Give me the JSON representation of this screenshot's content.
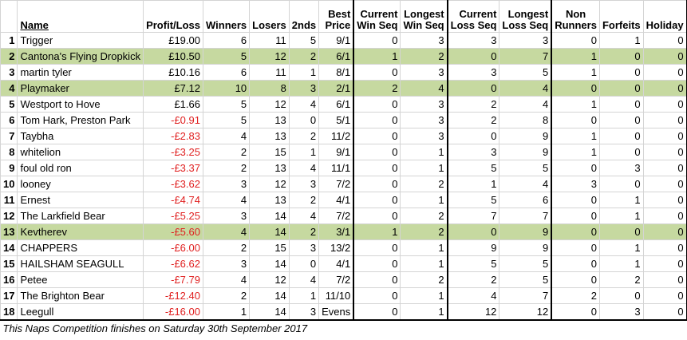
{
  "headers": {
    "pos": "",
    "name": "Name",
    "profit_loss": "Profit/Loss",
    "winners": "Winners",
    "losers": "Losers",
    "seconds": "2nds",
    "best_price_1": "Best",
    "best_price_2": "Price",
    "cur_win_1": "Current",
    "cur_win_2": "Win Seq",
    "long_win_1": "Longest",
    "long_win_2": "Win Seq",
    "cur_loss_1": "Current",
    "cur_loss_2": "Loss Seq",
    "long_loss_1": "Longest",
    "long_loss_2": "Loss Seq",
    "non_runners_1": "Non",
    "non_runners_2": "Runners",
    "forfeits": "Forfeits",
    "holiday": "Holiday"
  },
  "rows": [
    {
      "pos": "1",
      "name": "Trigger",
      "pl": "£19.00",
      "neg": false,
      "w": "6",
      "l": "11",
      "s": "5",
      "bp": "9/1",
      "cw": "0",
      "lw": "3",
      "cl": "3",
      "ll": "3",
      "nr": "0",
      "f": "1",
      "h": "0",
      "hl": false
    },
    {
      "pos": "2",
      "name": "Cantona's Flying Dropkick",
      "pl": "£10.50",
      "neg": false,
      "w": "5",
      "l": "12",
      "s": "2",
      "bp": "6/1",
      "cw": "1",
      "lw": "2",
      "cl": "0",
      "ll": "7",
      "nr": "1",
      "f": "0",
      "h": "0",
      "hl": true
    },
    {
      "pos": "3",
      "name": "martin tyler",
      "pl": "£10.16",
      "neg": false,
      "w": "6",
      "l": "11",
      "s": "1",
      "bp": "8/1",
      "cw": "0",
      "lw": "3",
      "cl": "3",
      "ll": "5",
      "nr": "1",
      "f": "0",
      "h": "0",
      "hl": false
    },
    {
      "pos": "4",
      "name": "Playmaker",
      "pl": "£7.12",
      "neg": false,
      "w": "10",
      "l": "8",
      "s": "3",
      "bp": "2/1",
      "cw": "2",
      "lw": "4",
      "cl": "0",
      "ll": "4",
      "nr": "0",
      "f": "0",
      "h": "0",
      "hl": true
    },
    {
      "pos": "5",
      "name": "Westport to Hove",
      "pl": "£1.66",
      "neg": false,
      "w": "5",
      "l": "12",
      "s": "4",
      "bp": "6/1",
      "cw": "0",
      "lw": "3",
      "cl": "2",
      "ll": "4",
      "nr": "1",
      "f": "0",
      "h": "0",
      "hl": false
    },
    {
      "pos": "6",
      "name": "Tom Hark, Preston Park",
      "pl": "-£0.91",
      "neg": true,
      "w": "5",
      "l": "13",
      "s": "0",
      "bp": "5/1",
      "cw": "0",
      "lw": "3",
      "cl": "2",
      "ll": "8",
      "nr": "0",
      "f": "0",
      "h": "0",
      "hl": false
    },
    {
      "pos": "7",
      "name": "Taybha",
      "pl": "-£2.83",
      "neg": true,
      "w": "4",
      "l": "13",
      "s": "2",
      "bp": "11/2",
      "cw": "0",
      "lw": "3",
      "cl": "0",
      "ll": "9",
      "nr": "1",
      "f": "0",
      "h": "0",
      "hl": false
    },
    {
      "pos": "8",
      "name": "whitelion",
      "pl": "-£3.25",
      "neg": true,
      "w": "2",
      "l": "15",
      "s": "1",
      "bp": "9/1",
      "cw": "0",
      "lw": "1",
      "cl": "3",
      "ll": "9",
      "nr": "1",
      "f": "0",
      "h": "0",
      "hl": false
    },
    {
      "pos": "9",
      "name": "foul old ron",
      "pl": "-£3.37",
      "neg": true,
      "w": "2",
      "l": "13",
      "s": "4",
      "bp": "11/1",
      "cw": "0",
      "lw": "1",
      "cl": "5",
      "ll": "5",
      "nr": "0",
      "f": "3",
      "h": "0",
      "hl": false
    },
    {
      "pos": "10",
      "name": "looney",
      "pl": "-£3.62",
      "neg": true,
      "w": "3",
      "l": "12",
      "s": "3",
      "bp": "7/2",
      "cw": "0",
      "lw": "2",
      "cl": "1",
      "ll": "4",
      "nr": "3",
      "f": "0",
      "h": "0",
      "hl": false
    },
    {
      "pos": "11",
      "name": "Ernest",
      "pl": "-£4.74",
      "neg": true,
      "w": "4",
      "l": "13",
      "s": "2",
      "bp": "4/1",
      "cw": "0",
      "lw": "1",
      "cl": "5",
      "ll": "6",
      "nr": "0",
      "f": "1",
      "h": "0",
      "hl": false
    },
    {
      "pos": "12",
      "name": "The Larkfield Bear",
      "pl": "-£5.25",
      "neg": true,
      "w": "3",
      "l": "14",
      "s": "4",
      "bp": "7/2",
      "cw": "0",
      "lw": "2",
      "cl": "7",
      "ll": "7",
      "nr": "0",
      "f": "1",
      "h": "0",
      "hl": false
    },
    {
      "pos": "13",
      "name": "Kevtherev",
      "pl": "-£5.60",
      "neg": true,
      "w": "4",
      "l": "14",
      "s": "2",
      "bp": "3/1",
      "cw": "1",
      "lw": "2",
      "cl": "0",
      "ll": "9",
      "nr": "0",
      "f": "0",
      "h": "0",
      "hl": true
    },
    {
      "pos": "14",
      "name": "CHAPPERS",
      "pl": "-£6.00",
      "neg": true,
      "w": "2",
      "l": "15",
      "s": "3",
      "bp": "13/2",
      "cw": "0",
      "lw": "1",
      "cl": "9",
      "ll": "9",
      "nr": "0",
      "f": "1",
      "h": "0",
      "hl": false
    },
    {
      "pos": "15",
      "name": "HAILSHAM SEAGULL",
      "pl": "-£6.62",
      "neg": true,
      "w": "3",
      "l": "14",
      "s": "0",
      "bp": "4/1",
      "cw": "0",
      "lw": "1",
      "cl": "5",
      "ll": "5",
      "nr": "0",
      "f": "1",
      "h": "0",
      "hl": false
    },
    {
      "pos": "16",
      "name": "Petee",
      "pl": "-£7.79",
      "neg": true,
      "w": "4",
      "l": "12",
      "s": "4",
      "bp": "7/2",
      "cw": "0",
      "lw": "2",
      "cl": "2",
      "ll": "5",
      "nr": "0",
      "f": "2",
      "h": "0",
      "hl": false
    },
    {
      "pos": "17",
      "name": "The Brighton Bear",
      "pl": "-£12.40",
      "neg": true,
      "w": "2",
      "l": "14",
      "s": "1",
      "bp": "11/10",
      "cw": "0",
      "lw": "1",
      "cl": "4",
      "ll": "7",
      "nr": "2",
      "f": "0",
      "h": "0",
      "hl": false
    },
    {
      "pos": "18",
      "name": "Leegull",
      "pl": "-£16.00",
      "neg": true,
      "w": "1",
      "l": "14",
      "s": "3",
      "bp": "Evens",
      "cw": "0",
      "lw": "1",
      "cl": "12",
      "ll": "12",
      "nr": "0",
      "f": "3",
      "h": "0",
      "hl": false
    }
  ],
  "footer": "This Naps Competition finishes on Saturday 30th September 2017",
  "colors": {
    "highlight": "#c6d9a0",
    "negative": "#e02020"
  }
}
